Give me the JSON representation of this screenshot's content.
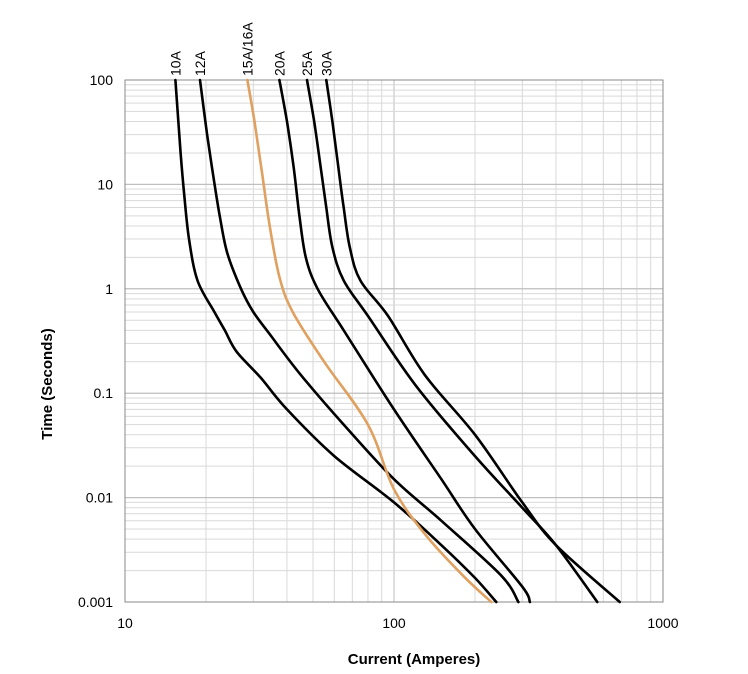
{
  "chart_data": {
    "type": "line",
    "title": "",
    "xlabel": "Current  (Amperes)",
    "ylabel": "Time (Seconds)",
    "xscale": "log",
    "yscale": "log",
    "xlim": [
      10,
      1000
    ],
    "ylim": [
      0.001,
      100
    ],
    "xticks": [
      "10",
      "100",
      "1000"
    ],
    "yticks": [
      "100",
      "10",
      "1",
      "0.1",
      "0.01",
      "0.001"
    ],
    "grid": true,
    "legend": "series labels above plot, rotated",
    "colors": {
      "default_curve": "#000000",
      "highlight_curve": "#e0a060",
      "grid_major": "#bdbdbd",
      "grid_minor": "#d9d9d9",
      "frame": "#888888"
    },
    "series": [
      {
        "name": "10A",
        "color": "#000000",
        "points": [
          [
            15.4,
            100
          ],
          [
            16.1,
            20
          ],
          [
            16.6,
            8
          ],
          [
            17.3,
            3
          ],
          [
            18.6,
            1.2
          ],
          [
            21.5,
            0.6
          ],
          [
            23.5,
            0.4
          ],
          [
            26,
            0.25
          ],
          [
            32,
            0.14
          ],
          [
            40,
            0.07
          ],
          [
            60,
            0.025
          ],
          [
            100,
            0.009
          ],
          [
            150,
            0.0035
          ],
          [
            200,
            0.0017
          ],
          [
            240,
            0.001
          ]
        ]
      },
      {
        "name": "12A",
        "color": "#000000",
        "points": [
          [
            19,
            100
          ],
          [
            20.2,
            30
          ],
          [
            21.3,
            12
          ],
          [
            22.5,
            5
          ],
          [
            24,
            2.2
          ],
          [
            27,
            1
          ],
          [
            30,
            0.6
          ],
          [
            35,
            0.35
          ],
          [
            45,
            0.15
          ],
          [
            65,
            0.05
          ],
          [
            100,
            0.015
          ],
          [
            150,
            0.006
          ],
          [
            250,
            0.0018
          ],
          [
            290,
            0.001
          ]
        ]
      },
      {
        "name": "15A/16A",
        "color": "#e0a060",
        "points": [
          [
            28.5,
            100
          ],
          [
            30.3,
            40
          ],
          [
            32.3,
            13
          ],
          [
            34.5,
            4
          ],
          [
            37.5,
            1.3
          ],
          [
            42,
            0.6
          ],
          [
            55,
            0.2
          ],
          [
            80,
            0.05
          ],
          [
            100,
            0.012
          ],
          [
            130,
            0.0045
          ],
          [
            180,
            0.0018
          ],
          [
            230,
            0.001
          ]
        ]
      },
      {
        "name": "20A",
        "color": "#000000",
        "points": [
          [
            37.5,
            100
          ],
          [
            40,
            40
          ],
          [
            42.3,
            15
          ],
          [
            44.5,
            5
          ],
          [
            47,
            2
          ],
          [
            52,
            1
          ],
          [
            65,
            0.4
          ],
          [
            100,
            0.07
          ],
          [
            150,
            0.015
          ],
          [
            200,
            0.005
          ],
          [
            300,
            0.0014
          ],
          [
            320,
            0.001
          ]
        ]
      },
      {
        "name": "25A",
        "color": "#000000",
        "points": [
          [
            47.5,
            100
          ],
          [
            50.5,
            40
          ],
          [
            53.3,
            15
          ],
          [
            56,
            6
          ],
          [
            59,
            2.5
          ],
          [
            65,
            1.2
          ],
          [
            80,
            0.55
          ],
          [
            120,
            0.12
          ],
          [
            200,
            0.025
          ],
          [
            300,
            0.008
          ],
          [
            400,
            0.0035
          ],
          [
            570,
            0.001
          ]
        ]
      },
      {
        "name": "30A",
        "color": "#000000",
        "points": [
          [
            56,
            100
          ],
          [
            59,
            40
          ],
          [
            62,
            15
          ],
          [
            65,
            6
          ],
          [
            68.5,
            2.5
          ],
          [
            75,
            1.2
          ],
          [
            95,
            0.55
          ],
          [
            130,
            0.15
          ],
          [
            200,
            0.04
          ],
          [
            300,
            0.009
          ],
          [
            400,
            0.0035
          ],
          [
            690,
            0.001
          ]
        ]
      }
    ]
  }
}
